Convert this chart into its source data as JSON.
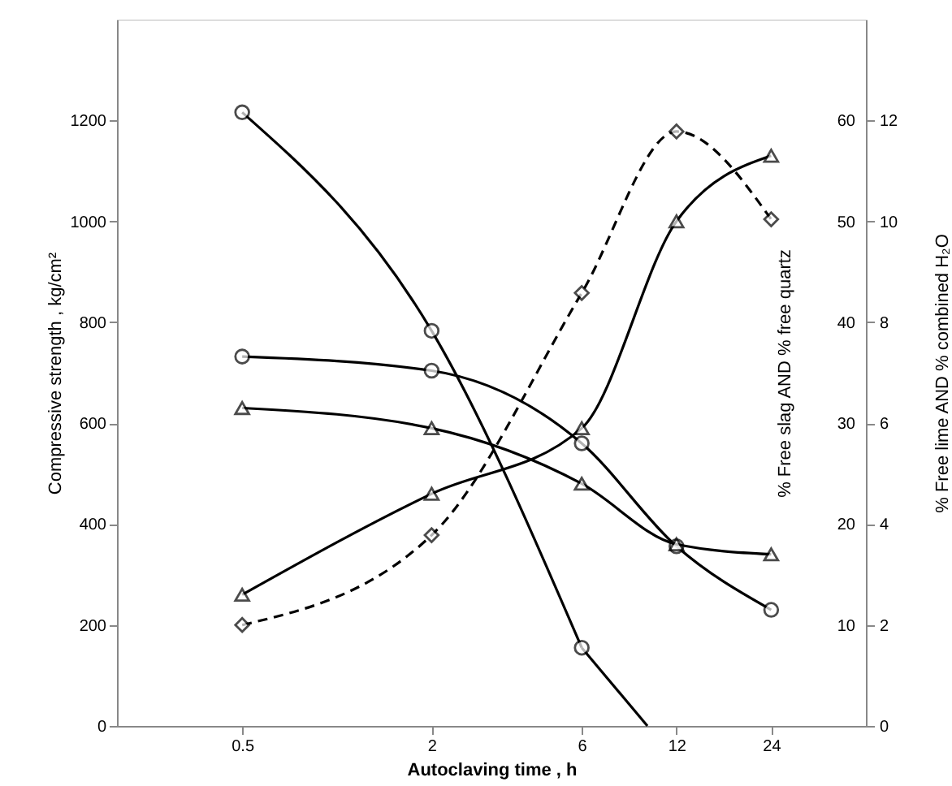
{
  "chart_data": {
    "type": "line",
    "xlabel": "Autoclaving time , h",
    "ylabel": "Compressive strength , kg/cm²",
    "y2label": "% Free slag AND % free quartz",
    "y3label": "% Free lime AND % combined H₂O",
    "x": [
      0.5,
      2,
      6,
      12,
      24
    ],
    "log": "x",
    "xlim": [
      0.2,
      48
    ],
    "xticks": [
      0.5,
      2,
      6,
      12,
      24
    ],
    "ylim": [
      0,
      1400
    ],
    "yticks": [
      0,
      200,
      400,
      600,
      800,
      1000,
      1200
    ],
    "y2lim": [
      0,
      70
    ],
    "y2ticks": [
      10,
      20,
      30,
      40,
      50,
      60
    ],
    "y3lim": [
      0,
      14
    ],
    "y3ticks": [
      0,
      2,
      4,
      6,
      8,
      10,
      12
    ],
    "grid": false,
    "series": [
      {
        "color": "#000000",
        "marker": "circle",
        "line_style": "solid",
        "x": [
          0.5,
          2,
          6
        ],
        "values": [
          1216,
          783,
          155
        ]
      },
      {
        "type": "line",
        "color": "#000000",
        "marker": "none",
        "line_style": "solid",
        "x": [
          6,
          9.7
        ],
        "values": [
          155,
          0
        ]
      },
      {
        "axis": "y2",
        "color": "#000000",
        "marker": "circle",
        "line_style": "solid",
        "values": [
          36.6,
          35.2,
          28.0,
          17.8,
          11.5
        ]
      },
      {
        "axis": "y2",
        "color": "#000000",
        "marker": "diamond",
        "line_style": "dashed",
        "values": [
          10.0,
          18.9,
          42.9,
          58.9,
          50.2
        ]
      },
      {
        "axis": "y3",
        "color": "#000000",
        "marker": "triangle",
        "line_style": "solid",
        "values": [
          6.3,
          5.9,
          4.8,
          3.6,
          3.4
        ]
      },
      {
        "axis": "y3",
        "color": "#000000",
        "marker": "triangle",
        "line_style": "solid",
        "values": [
          2.6,
          4.6,
          5.9,
          10.0,
          11.3
        ]
      }
    ]
  }
}
